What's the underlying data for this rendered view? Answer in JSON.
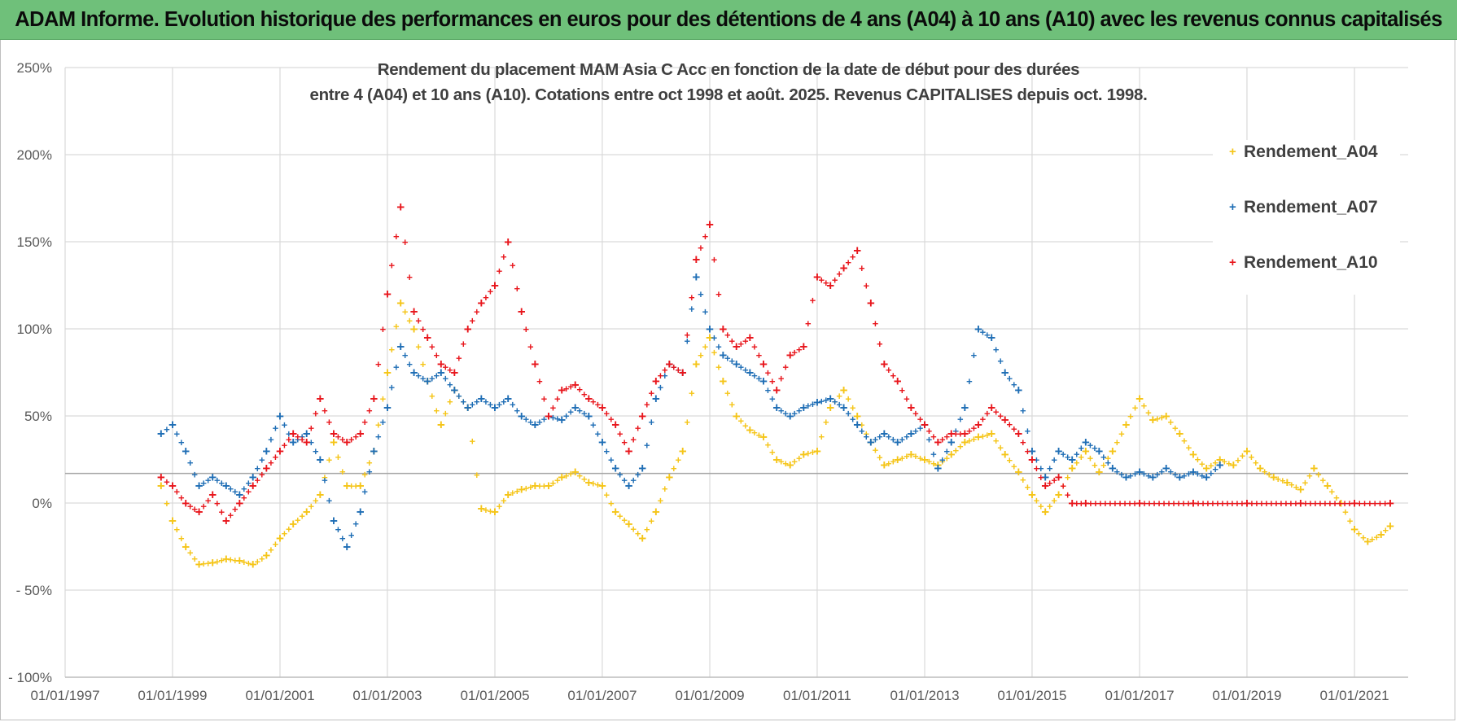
{
  "page": {
    "banner_title": "ADAM Informe. Evolution historique des performances en euros pour des détentions de 4 ans (A04) à 10 ans (A10) avec les revenus connus capitalisés"
  },
  "chart_data": {
    "type": "scatter",
    "title": "Rendement du placement MAM Asia C Acc en fonction de la date de début pour des durées",
    "subtitle": "entre 4 (A04) et 10 ans (A10).  Cotations entre oct 1998 et août. 2025. Revenus CAPITALISES depuis oct. 1998.",
    "xlabel": "",
    "ylabel": "",
    "x_ticks": [
      "01/01/1997",
      "01/01/1999",
      "01/01/2001",
      "01/01/2003",
      "01/01/2005",
      "01/01/2007",
      "01/01/2009",
      "01/01/2011",
      "01/01/2013",
      "01/01/2015",
      "01/01/2017",
      "01/01/2019",
      "01/01/2021"
    ],
    "y_ticks": [
      "250%",
      "200%",
      "150%",
      "100%",
      "50%",
      "0%",
      "- 50%",
      "- 100%"
    ],
    "ylim": [
      -100,
      250
    ],
    "xlim": [
      "1997-01-01",
      "2022-01-01"
    ],
    "grid": true,
    "legend_position": "top-right",
    "reference_line_y": 17,
    "series": [
      {
        "name": "Rendement_A04",
        "color": "#f5c518",
        "marker": "+",
        "points": [
          [
            "1998-10-15",
            10
          ],
          [
            "1999-01-01",
            -10
          ],
          [
            "1999-04-01",
            -25
          ],
          [
            "1999-07-01",
            -35
          ],
          [
            "1999-10-01",
            -34
          ],
          [
            "2000-01-01",
            -32
          ],
          [
            "2000-04-01",
            -33
          ],
          [
            "2000-07-01",
            -35
          ],
          [
            "2000-10-01",
            -30
          ],
          [
            "2001-01-01",
            -20
          ],
          [
            "2001-04-01",
            -12
          ],
          [
            "2001-07-01",
            -5
          ],
          [
            "2001-10-01",
            5
          ],
          [
            "2002-01-01",
            35
          ],
          [
            "2002-04-01",
            10
          ],
          [
            "2002-07-01",
            10
          ],
          [
            "2002-10-01",
            30
          ],
          [
            "2003-01-01",
            75
          ],
          [
            "2003-04-01",
            115
          ],
          [
            "2003-07-01",
            100
          ],
          [
            "2003-10-01",
            70
          ],
          [
            "2004-01-01",
            45
          ],
          [
            "2004-04-01",
            65
          ],
          [
            "2004-07-01",
            55
          ],
          [
            "2004-10-01",
            -3
          ],
          [
            "2005-01-01",
            -5
          ],
          [
            "2005-04-01",
            5
          ],
          [
            "2005-07-01",
            8
          ],
          [
            "2005-10-01",
            10
          ],
          [
            "2006-01-01",
            10
          ],
          [
            "2006-04-01",
            15
          ],
          [
            "2006-07-01",
            18
          ],
          [
            "2006-10-01",
            12
          ],
          [
            "2007-01-01",
            10
          ],
          [
            "2007-04-01",
            -5
          ],
          [
            "2007-07-01",
            -12
          ],
          [
            "2007-10-01",
            -20
          ],
          [
            "2008-01-01",
            -5
          ],
          [
            "2008-04-01",
            15
          ],
          [
            "2008-07-01",
            30
          ],
          [
            "2008-10-01",
            80
          ],
          [
            "2009-01-01",
            95
          ],
          [
            "2009-04-01",
            70
          ],
          [
            "2009-07-01",
            50
          ],
          [
            "2009-10-01",
            42
          ],
          [
            "2010-01-01",
            38
          ],
          [
            "2010-04-01",
            25
          ],
          [
            "2010-07-01",
            22
          ],
          [
            "2010-10-01",
            28
          ],
          [
            "2011-01-01",
            30
          ],
          [
            "2011-04-01",
            55
          ],
          [
            "2011-07-01",
            65
          ],
          [
            "2011-10-01",
            50
          ],
          [
            "2012-01-01",
            35
          ],
          [
            "2012-04-01",
            22
          ],
          [
            "2012-07-01",
            25
          ],
          [
            "2012-10-01",
            28
          ],
          [
            "2013-01-01",
            25
          ],
          [
            "2013-04-01",
            22
          ],
          [
            "2013-07-01",
            28
          ],
          [
            "2013-10-01",
            35
          ],
          [
            "2014-01-01",
            38
          ],
          [
            "2014-04-01",
            40
          ],
          [
            "2014-07-01",
            28
          ],
          [
            "2014-10-01",
            18
          ],
          [
            "2015-01-01",
            5
          ],
          [
            "2015-04-01",
            -5
          ],
          [
            "2015-07-01",
            5
          ],
          [
            "2015-10-01",
            20
          ],
          [
            "2016-01-01",
            30
          ],
          [
            "2016-04-01",
            18
          ],
          [
            "2016-07-01",
            30
          ],
          [
            "2016-10-01",
            45
          ],
          [
            "2017-01-01",
            60
          ],
          [
            "2017-04-01",
            48
          ],
          [
            "2017-07-01",
            50
          ],
          [
            "2017-10-01",
            40
          ],
          [
            "2018-01-01",
            28
          ],
          [
            "2018-04-01",
            20
          ],
          [
            "2018-07-01",
            25
          ],
          [
            "2018-10-01",
            22
          ],
          [
            "2019-01-01",
            30
          ],
          [
            "2019-04-01",
            20
          ],
          [
            "2019-07-01",
            15
          ],
          [
            "2019-10-01",
            12
          ],
          [
            "2020-01-01",
            8
          ],
          [
            "2020-04-01",
            20
          ],
          [
            "2020-07-01",
            10
          ],
          [
            "2020-10-01",
            0
          ],
          [
            "2021-01-01",
            -15
          ],
          [
            "2021-04-01",
            -22
          ],
          [
            "2021-07-01",
            -18
          ],
          [
            "2021-09-01",
            -13
          ]
        ]
      },
      {
        "name": "Rendement_A07",
        "color": "#1f6eb5",
        "marker": "+",
        "points": [
          [
            "1998-10-15",
            40
          ],
          [
            "1999-01-01",
            45
          ],
          [
            "1999-04-01",
            30
          ],
          [
            "1999-07-01",
            10
          ],
          [
            "1999-10-01",
            15
          ],
          [
            "2000-01-01",
            10
          ],
          [
            "2000-04-01",
            5
          ],
          [
            "2000-07-01",
            15
          ],
          [
            "2000-10-01",
            30
          ],
          [
            "2001-01-01",
            50
          ],
          [
            "2001-04-01",
            35
          ],
          [
            "2001-07-01",
            40
          ],
          [
            "2001-10-01",
            25
          ],
          [
            "2002-01-01",
            -10
          ],
          [
            "2002-04-01",
            -25
          ],
          [
            "2002-07-01",
            -5
          ],
          [
            "2002-10-01",
            30
          ],
          [
            "2003-01-01",
            55
          ],
          [
            "2003-04-01",
            90
          ],
          [
            "2003-07-01",
            75
          ],
          [
            "2003-10-01",
            70
          ],
          [
            "2004-01-01",
            75
          ],
          [
            "2004-04-01",
            65
          ],
          [
            "2004-07-01",
            55
          ],
          [
            "2004-10-01",
            60
          ],
          [
            "2005-01-01",
            55
          ],
          [
            "2005-04-01",
            60
          ],
          [
            "2005-07-01",
            50
          ],
          [
            "2005-10-01",
            45
          ],
          [
            "2006-01-01",
            50
          ],
          [
            "2006-04-01",
            48
          ],
          [
            "2006-07-01",
            55
          ],
          [
            "2006-10-01",
            50
          ],
          [
            "2007-01-01",
            35
          ],
          [
            "2007-04-01",
            20
          ],
          [
            "2007-07-01",
            10
          ],
          [
            "2007-10-01",
            20
          ],
          [
            "2008-01-01",
            60
          ],
          [
            "2008-04-01",
            80
          ],
          [
            "2008-07-01",
            75
          ],
          [
            "2008-10-01",
            130
          ],
          [
            "2009-01-01",
            100
          ],
          [
            "2009-04-01",
            85
          ],
          [
            "2009-07-01",
            80
          ],
          [
            "2009-10-01",
            75
          ],
          [
            "2010-01-01",
            70
          ],
          [
            "2010-04-01",
            55
          ],
          [
            "2010-07-01",
            50
          ],
          [
            "2010-10-01",
            55
          ],
          [
            "2011-01-01",
            58
          ],
          [
            "2011-04-01",
            60
          ],
          [
            "2011-07-01",
            55
          ],
          [
            "2011-10-01",
            45
          ],
          [
            "2012-01-01",
            35
          ],
          [
            "2012-04-01",
            40
          ],
          [
            "2012-07-01",
            35
          ],
          [
            "2012-10-01",
            40
          ],
          [
            "2013-01-01",
            45
          ],
          [
            "2013-04-01",
            20
          ],
          [
            "2013-07-01",
            35
          ],
          [
            "2013-10-01",
            55
          ],
          [
            "2014-01-01",
            100
          ],
          [
            "2014-04-01",
            95
          ],
          [
            "2014-07-01",
            75
          ],
          [
            "2014-10-01",
            65
          ],
          [
            "2015-01-01",
            30
          ],
          [
            "2015-04-01",
            15
          ],
          [
            "2015-07-01",
            30
          ],
          [
            "2015-10-01",
            25
          ],
          [
            "2016-01-01",
            35
          ],
          [
            "2016-04-01",
            30
          ],
          [
            "2016-07-01",
            20
          ],
          [
            "2016-10-01",
            15
          ],
          [
            "2017-01-01",
            18
          ],
          [
            "2017-04-01",
            15
          ],
          [
            "2017-07-01",
            20
          ],
          [
            "2017-10-01",
            15
          ],
          [
            "2018-01-01",
            18
          ],
          [
            "2018-04-01",
            15
          ],
          [
            "2018-07-01",
            22
          ]
        ]
      },
      {
        "name": "Rendement_A10",
        "color": "#e8161c",
        "marker": "+",
        "points": [
          [
            "1998-10-15",
            15
          ],
          [
            "1999-01-01",
            10
          ],
          [
            "1999-04-01",
            0
          ],
          [
            "1999-07-01",
            -5
          ],
          [
            "1999-10-01",
            5
          ],
          [
            "2000-01-01",
            -10
          ],
          [
            "2000-04-01",
            0
          ],
          [
            "2000-07-01",
            10
          ],
          [
            "2000-10-01",
            20
          ],
          [
            "2001-01-01",
            30
          ],
          [
            "2001-04-01",
            40
          ],
          [
            "2001-07-01",
            35
          ],
          [
            "2001-10-01",
            60
          ],
          [
            "2002-01-01",
            40
          ],
          [
            "2002-04-01",
            35
          ],
          [
            "2002-07-01",
            40
          ],
          [
            "2002-10-01",
            60
          ],
          [
            "2003-01-01",
            120
          ],
          [
            "2003-04-01",
            170
          ],
          [
            "2003-07-01",
            110
          ],
          [
            "2003-10-01",
            95
          ],
          [
            "2004-01-01",
            80
          ],
          [
            "2004-04-01",
            75
          ],
          [
            "2004-07-01",
            100
          ],
          [
            "2004-10-01",
            115
          ],
          [
            "2005-01-01",
            125
          ],
          [
            "2005-04-01",
            150
          ],
          [
            "2005-07-01",
            110
          ],
          [
            "2005-10-01",
            80
          ],
          [
            "2006-01-01",
            50
          ],
          [
            "2006-04-01",
            65
          ],
          [
            "2006-07-01",
            68
          ],
          [
            "2006-10-01",
            60
          ],
          [
            "2007-01-01",
            55
          ],
          [
            "2007-04-01",
            45
          ],
          [
            "2007-07-01",
            30
          ],
          [
            "2007-10-01",
            50
          ],
          [
            "2008-01-01",
            70
          ],
          [
            "2008-04-01",
            80
          ],
          [
            "2008-07-01",
            75
          ],
          [
            "2008-10-01",
            140
          ],
          [
            "2009-01-01",
            160
          ],
          [
            "2009-04-01",
            100
          ],
          [
            "2009-07-01",
            90
          ],
          [
            "2009-10-01",
            95
          ],
          [
            "2010-01-01",
            80
          ],
          [
            "2010-04-01",
            65
          ],
          [
            "2010-07-01",
            85
          ],
          [
            "2010-10-01",
            90
          ],
          [
            "2011-01-01",
            130
          ],
          [
            "2011-04-01",
            125
          ],
          [
            "2011-07-01",
            135
          ],
          [
            "2011-10-01",
            145
          ],
          [
            "2012-01-01",
            115
          ],
          [
            "2012-04-01",
            80
          ],
          [
            "2012-07-01",
            70
          ],
          [
            "2012-10-01",
            55
          ],
          [
            "2013-01-01",
            45
          ],
          [
            "2013-04-01",
            35
          ],
          [
            "2013-07-01",
            40
          ],
          [
            "2013-10-01",
            40
          ],
          [
            "2014-01-01",
            45
          ],
          [
            "2014-04-01",
            55
          ],
          [
            "2014-07-01",
            48
          ],
          [
            "2014-10-01",
            40
          ],
          [
            "2015-01-01",
            25
          ],
          [
            "2015-04-01",
            10
          ],
          [
            "2015-07-01",
            15
          ],
          [
            "2015-10-01",
            0
          ],
          [
            "2016-01-01",
            0
          ],
          [
            "2017-01-01",
            0
          ],
          [
            "2018-01-01",
            0
          ],
          [
            "2019-01-01",
            0
          ],
          [
            "2020-01-01",
            0
          ],
          [
            "2021-01-01",
            0
          ],
          [
            "2021-09-01",
            0
          ]
        ]
      }
    ]
  }
}
